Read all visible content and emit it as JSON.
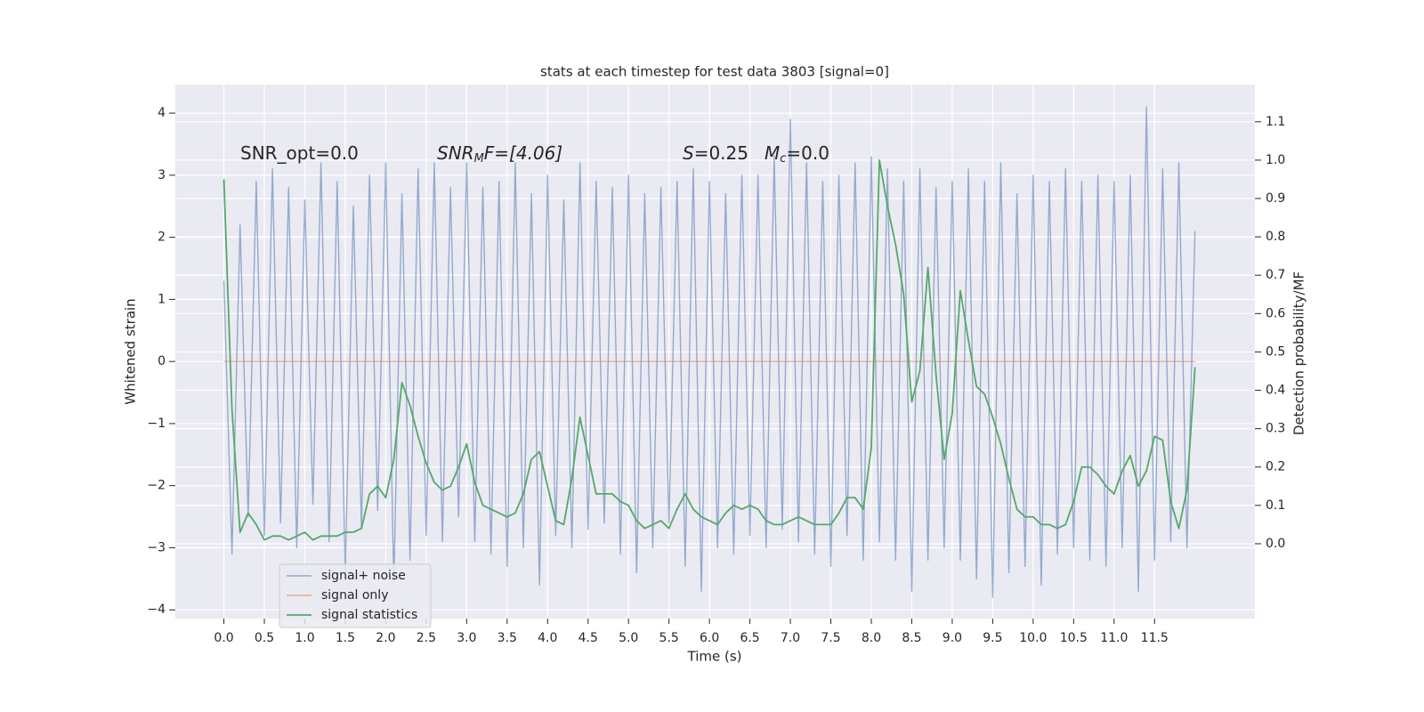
{
  "chart_data": {
    "type": "line",
    "title": "stats at each timestep for test data 3803 [signal=0]",
    "xlabel": "Time (s)",
    "ylabel": "Whitened strain",
    "y2label": "Detection probability/MF",
    "annotations": [
      [
        "SNR_opt=0.0"
      ],
      [
        "SNR",
        "M",
        "F=[4.06]"
      ],
      [
        "S",
        "=0.25"
      ],
      [
        "M",
        "c",
        "=0.0"
      ]
    ],
    "x": [
      0,
      0.1,
      0.2,
      0.3,
      0.4,
      0.5,
      0.6,
      0.7,
      0.8,
      0.9,
      1.0,
      1.1,
      1.2,
      1.3,
      1.4,
      1.5,
      1.6,
      1.7,
      1.8,
      1.9,
      2.0,
      2.1,
      2.2,
      2.3,
      2.4,
      2.5,
      2.6,
      2.7,
      2.8,
      2.9,
      3.0,
      3.1,
      3.2,
      3.3,
      3.4,
      3.5,
      3.6,
      3.7,
      3.8,
      3.9,
      4.0,
      4.1,
      4.2,
      4.3,
      4.4,
      4.5,
      4.6,
      4.7,
      4.8,
      4.9,
      5.0,
      5.1,
      5.2,
      5.3,
      5.4,
      5.5,
      5.6,
      5.7,
      5.8,
      5.9,
      6.0,
      6.1,
      6.2,
      6.3,
      6.4,
      6.5,
      6.6,
      6.7,
      6.8,
      6.9,
      7.0,
      7.1,
      7.2,
      7.3,
      7.4,
      7.5,
      7.6,
      7.7,
      7.8,
      7.9,
      8.0,
      8.1,
      8.2,
      8.3,
      8.4,
      8.5,
      8.6,
      8.7,
      8.8,
      8.9,
      9.0,
      9.1,
      9.2,
      9.3,
      9.4,
      9.5,
      9.6,
      9.7,
      9.8,
      9.9,
      10.0,
      10.1,
      10.2,
      10.3,
      10.4,
      10.5,
      10.6,
      10.7,
      10.8,
      10.9,
      11.0,
      11.1,
      11.2,
      11.3,
      11.4,
      11.5,
      11.6,
      11.7,
      11.8,
      11.9,
      12.0
    ],
    "series": [
      {
        "name": "signal+ noise",
        "color": "#4c72b0",
        "values": [
          1.3,
          -3.1,
          2.2,
          -2.5,
          2.9,
          -2.8,
          3.1,
          -2.6,
          2.8,
          -3.0,
          2.6,
          -2.3,
          3.2,
          -2.9,
          2.9,
          -3.4,
          2.5,
          -2.7,
          3.0,
          -2.4,
          3.2,
          -3.6,
          2.7,
          -3.2,
          3.1,
          -2.8,
          3.2,
          -2.9,
          2.8,
          -2.5,
          3.2,
          -2.9,
          2.8,
          -3.1,
          2.9,
          -3.3,
          3.2,
          -3.0,
          2.7,
          -3.6,
          3.0,
          -2.8,
          2.6,
          -3.0,
          3.2,
          -2.7,
          2.9,
          -2.6,
          2.8,
          -3.1,
          3.0,
          -3.4,
          2.7,
          -3.0,
          2.8,
          -2.6,
          2.9,
          -3.3,
          3.1,
          -3.7,
          2.9,
          -3.0,
          2.7,
          -3.1,
          3.0,
          -2.8,
          3.0,
          -3.0,
          3.3,
          -2.7,
          3.9,
          -2.9,
          3.2,
          -3.1,
          2.9,
          -3.3,
          3.0,
          -2.8,
          3.2,
          -3.2,
          3.3,
          -2.9,
          3.1,
          -3.2,
          2.9,
          -3.7,
          3.1,
          -3.2,
          2.8,
          -3.0,
          2.9,
          -3.2,
          3.1,
          -3.5,
          2.9,
          -3.8,
          3.2,
          -3.4,
          2.7,
          -3.3,
          3.0,
          -3.6,
          2.9,
          -3.1,
          3.1,
          -3.0,
          2.9,
          -3.2,
          3.0,
          -3.3,
          2.9,
          -3.0,
          3.0,
          -3.7,
          4.1,
          -3.2,
          3.1,
          -2.9,
          3.2,
          -3.0,
          2.1
        ]
      },
      {
        "name": "signal only",
        "color": "#dd8452",
        "values": [
          0,
          0,
          0,
          0,
          0,
          0,
          0,
          0,
          0,
          0,
          0,
          0,
          0,
          0,
          0,
          0,
          0,
          0,
          0,
          0,
          0,
          0,
          0,
          0,
          0,
          0,
          0,
          0,
          0,
          0,
          0,
          0,
          0,
          0,
          0,
          0,
          0,
          0,
          0,
          0,
          0,
          0,
          0,
          0,
          0,
          0,
          0,
          0,
          0,
          0,
          0,
          0,
          0,
          0,
          0,
          0,
          0,
          0,
          0,
          0,
          0,
          0,
          0,
          0,
          0,
          0,
          0,
          0,
          0,
          0,
          0,
          0,
          0,
          0,
          0,
          0,
          0,
          0,
          0,
          0,
          0,
          0,
          0,
          0,
          0,
          0,
          0,
          0,
          0,
          0,
          0,
          0,
          0,
          0,
          0,
          0,
          0,
          0,
          0,
          0,
          0,
          0,
          0,
          0,
          0,
          0,
          0,
          0,
          0,
          0,
          0,
          0,
          0,
          0,
          0,
          0,
          0,
          0,
          0,
          0,
          0
        ]
      },
      {
        "name": "signal statistics",
        "color": "#55a868",
        "axis": "y2",
        "values": [
          0.95,
          0.35,
          0.03,
          0.08,
          0.05,
          0.01,
          0.02,
          0.02,
          0.01,
          0.02,
          0.03,
          0.01,
          0.02,
          0.02,
          0.02,
          0.03,
          0.03,
          0.04,
          0.13,
          0.15,
          0.12,
          0.22,
          0.42,
          0.36,
          0.28,
          0.21,
          0.16,
          0.14,
          0.15,
          0.2,
          0.26,
          0.16,
          0.1,
          0.09,
          0.08,
          0.07,
          0.08,
          0.13,
          0.22,
          0.24,
          0.15,
          0.06,
          0.05,
          0.17,
          0.33,
          0.23,
          0.13,
          0.13,
          0.13,
          0.11,
          0.1,
          0.06,
          0.04,
          0.05,
          0.06,
          0.04,
          0.09,
          0.13,
          0.09,
          0.07,
          0.06,
          0.05,
          0.08,
          0.1,
          0.09,
          0.1,
          0.09,
          0.06,
          0.05,
          0.05,
          0.06,
          0.07,
          0.06,
          0.05,
          0.05,
          0.05,
          0.08,
          0.12,
          0.12,
          0.09,
          0.25,
          1.0,
          0.88,
          0.78,
          0.65,
          0.37,
          0.45,
          0.72,
          0.44,
          0.22,
          0.34,
          0.66,
          0.53,
          0.41,
          0.39,
          0.33,
          0.26,
          0.17,
          0.09,
          0.07,
          0.07,
          0.05,
          0.05,
          0.04,
          0.05,
          0.11,
          0.2,
          0.2,
          0.18,
          0.15,
          0.13,
          0.19,
          0.23,
          0.15,
          0.19,
          0.28,
          0.27,
          0.11,
          0.04,
          0.14,
          0.46
        ]
      }
    ],
    "xlim": [
      -0.6,
      12.74
    ],
    "ylim": [
      -4.14,
      4.46
    ],
    "y2lim": [
      -0.195,
      1.197
    ],
    "xticks": [
      {
        "value": 0,
        "label": "0.0"
      },
      {
        "value": 0.5,
        "label": "0.5"
      },
      {
        "value": 1,
        "label": "1.0"
      },
      {
        "value": 1.5,
        "label": "1.5"
      },
      {
        "value": 2,
        "label": "2.0"
      },
      {
        "value": 2.5,
        "label": "2.5"
      },
      {
        "value": 3,
        "label": "3.0"
      },
      {
        "value": 3.5,
        "label": "3.5"
      },
      {
        "value": 4,
        "label": "4.0"
      },
      {
        "value": 4.5,
        "label": "4.5"
      },
      {
        "value": 5,
        "label": "5.0"
      },
      {
        "value": 5.5,
        "label": "5.5"
      },
      {
        "value": 6,
        "label": "6.0"
      },
      {
        "value": 6.5,
        "label": "6.5"
      },
      {
        "value": 7,
        "label": "7.0"
      },
      {
        "value": 7.5,
        "label": "7.5"
      },
      {
        "value": 8,
        "label": "8.0"
      },
      {
        "value": 8.5,
        "label": "8.5"
      },
      {
        "value": 9,
        "label": "9.0"
      },
      {
        "value": 9.5,
        "label": "9.5"
      },
      {
        "value": 10,
        "label": "10.0"
      },
      {
        "value": 10.5,
        "label": "10.5"
      },
      {
        "value": 11,
        "label": "11.0"
      },
      {
        "value": 11.5,
        "label": "11.5"
      }
    ],
    "yticks": [
      {
        "value": -4,
        "label": "−4"
      },
      {
        "value": -3,
        "label": "−3"
      },
      {
        "value": -2,
        "label": "−2"
      },
      {
        "value": -1,
        "label": "−1"
      },
      0,
      1,
      2,
      3,
      4
    ],
    "y2ticks": [
      {
        "value": 0,
        "label": "0.0"
      },
      {
        "value": 0.1,
        "label": "0.1"
      },
      {
        "value": 0.2,
        "label": "0.2"
      },
      {
        "value": 0.3,
        "label": "0.3"
      },
      {
        "value": 0.4,
        "label": "0.4"
      },
      {
        "value": 0.5,
        "label": "0.5"
      },
      {
        "value": 0.6,
        "label": "0.6"
      },
      {
        "value": 0.7,
        "label": "0.7"
      },
      {
        "value": 0.8,
        "label": "0.8"
      },
      {
        "value": 0.9,
        "label": "0.9"
      },
      {
        "value": 1.0,
        "label": "1.0"
      },
      {
        "value": 1.1,
        "label": "1.1"
      }
    ],
    "grid": true,
    "legend": "lower left",
    "background": "#eaeaf2"
  }
}
